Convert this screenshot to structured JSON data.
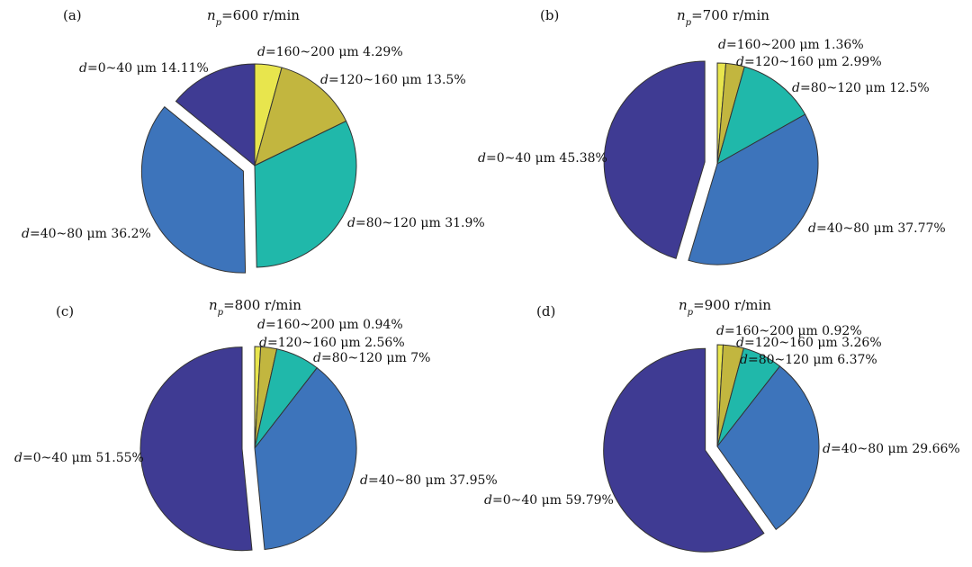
{
  "chart_data": [
    {
      "type": "pie",
      "panel": "(a)",
      "speed": {
        "symbol": "n",
        "subscript": "p",
        "value": "=600 r/min"
      },
      "slices": [
        {
          "name": "d=0~40 μm",
          "value": 14.11,
          "label": "14.11%",
          "color": "#3f3b93",
          "exploded": false
        },
        {
          "name": "d=40~80 μm",
          "value": 36.2,
          "label": "36.2%",
          "color": "#3d74bb",
          "exploded": true
        },
        {
          "name": "d=80~120 μm",
          "value": 31.9,
          "label": "31.9%",
          "color": "#20b8aa",
          "exploded": false
        },
        {
          "name": "d=120~160 μm",
          "value": 13.5,
          "label": "13.5%",
          "color": "#c2b63f",
          "exploded": false
        },
        {
          "name": "d=160~200 μm",
          "value": 4.29,
          "label": "4.29%",
          "color": "#e8e54d",
          "exploded": false
        }
      ]
    },
    {
      "type": "pie",
      "panel": "(b)",
      "speed": {
        "symbol": "n",
        "subscript": "p",
        "value": "=700 r/min"
      },
      "slices": [
        {
          "name": "d=0~40 μm",
          "value": 45.38,
          "label": "45.38%",
          "color": "#3f3b93",
          "exploded": true
        },
        {
          "name": "d=40~80 μm",
          "value": 37.77,
          "label": "37.77%",
          "color": "#3d74bb",
          "exploded": false
        },
        {
          "name": "d=80~120 μm",
          "value": 12.5,
          "label": "12.5%",
          "color": "#20b8aa",
          "exploded": false
        },
        {
          "name": "d=120~160 μm",
          "value": 2.99,
          "label": "2.99%",
          "color": "#c2b63f",
          "exploded": false
        },
        {
          "name": "d=160~200 μm",
          "value": 1.36,
          "label": "1.36%",
          "color": "#e8e54d",
          "exploded": false
        }
      ]
    },
    {
      "type": "pie",
      "panel": "(c)",
      "speed": {
        "symbol": "n",
        "subscript": "p",
        "value": "=800 r/min"
      },
      "slices": [
        {
          "name": "d=0~40 μm",
          "value": 51.55,
          "label": "51.55%",
          "color": "#3f3b93",
          "exploded": true
        },
        {
          "name": "d=40~80 μm",
          "value": 37.95,
          "label": "37.95%",
          "color": "#3d74bb",
          "exploded": false
        },
        {
          "name": "d=80~120 μm",
          "value": 7,
          "label": "7%",
          "color": "#20b8aa",
          "exploded": false
        },
        {
          "name": "d=120~160 μm",
          "value": 2.56,
          "label": "2.56%",
          "color": "#c2b63f",
          "exploded": false
        },
        {
          "name": "d=160~200 μm",
          "value": 0.94,
          "label": "0.94%",
          "color": "#e8e54d",
          "exploded": false
        }
      ]
    },
    {
      "type": "pie",
      "panel": "(d)",
      "speed": {
        "symbol": "n",
        "subscript": "p",
        "value": "=900 r/min"
      },
      "slices": [
        {
          "name": "d=0~40 μm",
          "value": 59.79,
          "label": "59.79%",
          "color": "#3f3b93",
          "exploded": true
        },
        {
          "name": "d=40~80 μm",
          "value": 29.66,
          "label": "29.66%",
          "color": "#3d74bb",
          "exploded": false
        },
        {
          "name": "d=80~120 μm",
          "value": 6.37,
          "label": "6.37%",
          "color": "#20b8aa",
          "exploded": false
        },
        {
          "name": "d=120~160 μm",
          "value": 3.26,
          "label": "3.26%",
          "color": "#c2b63f",
          "exploded": false
        },
        {
          "name": "d=160~200 μm",
          "value": 0.92,
          "label": "0.92%",
          "color": "#e8e54d",
          "exploded": false
        }
      ]
    }
  ]
}
